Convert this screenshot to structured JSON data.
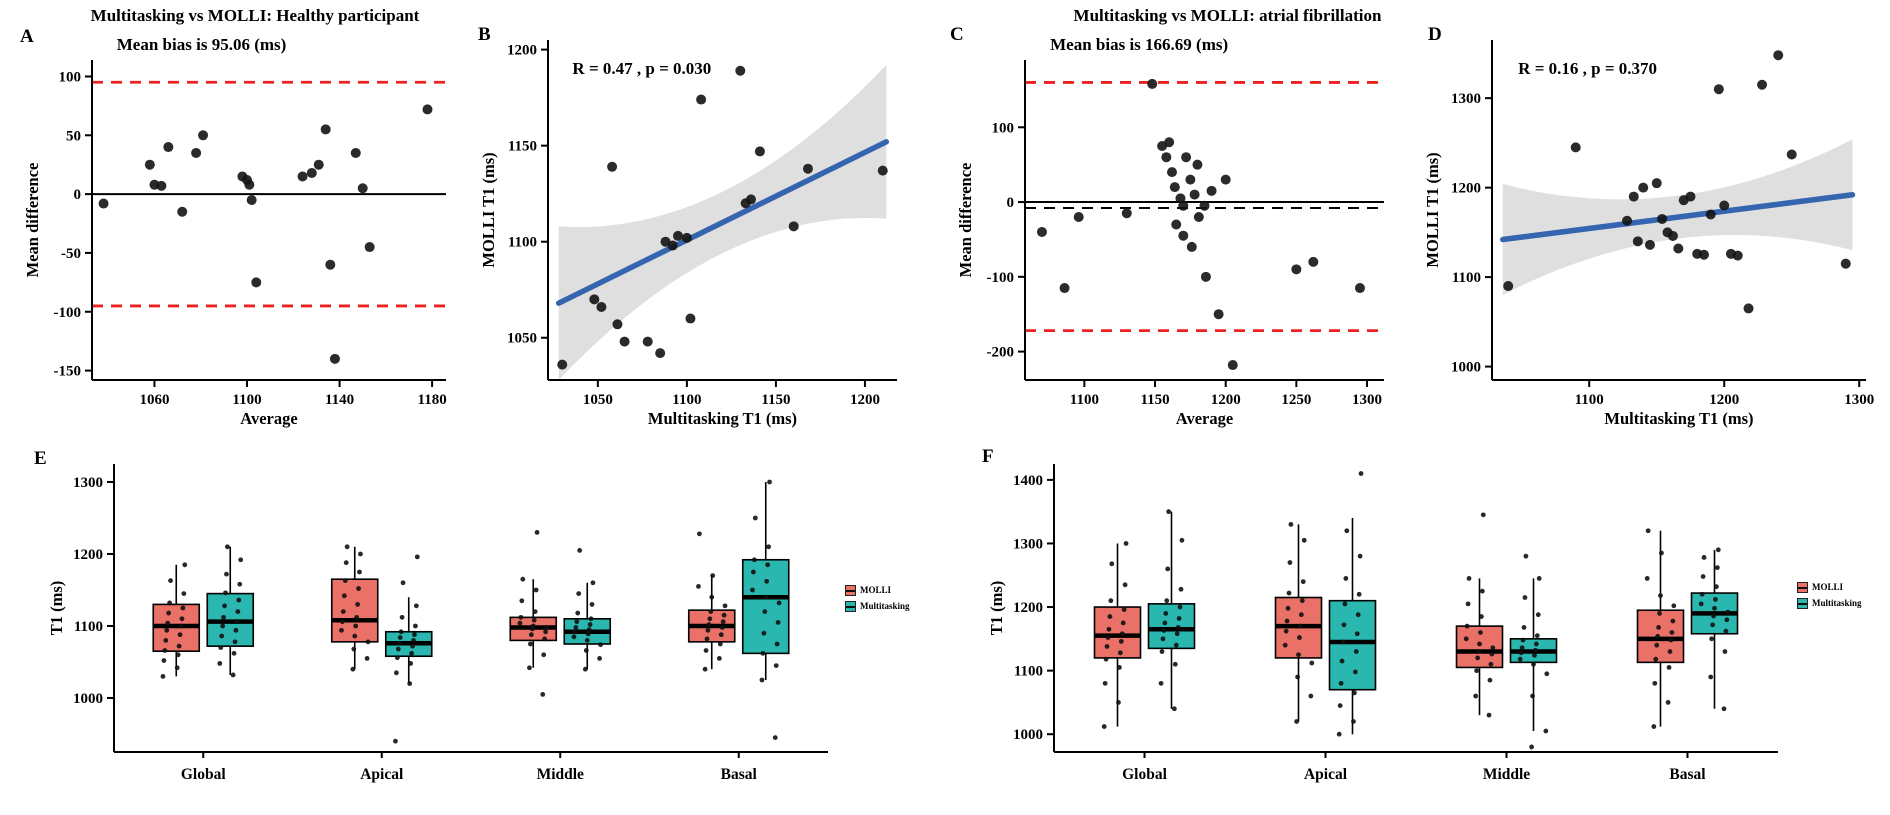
{
  "titles": {
    "left": "Multitasking vs MOLLI: Healthy participant",
    "right": "Multitasking vs MOLLI: atrial fibrillation"
  },
  "panels": {
    "a": "A",
    "b": "B",
    "c": "C",
    "d": "D",
    "e": "E",
    "f": "F"
  },
  "legend": {
    "items": [
      "MOLLI",
      "Multitasking"
    ],
    "colors": {
      "molli": "#E97168",
      "multitasking": "#2AB7B0"
    }
  },
  "colors": {
    "limit_line_red": "#EE2020",
    "regression_blue": "#3565AF",
    "confidence_band": "#DCDCDC",
    "point_black": "#141414"
  },
  "chart_data": [
    {
      "panel": "A",
      "type": "scatter",
      "annotation": "Mean bias is 95.06 (ms)",
      "annotation_pos": "above",
      "xlabel": "Average",
      "ylabel": "Mean difference",
      "xlim": [
        1033,
        1186
      ],
      "ylim": [
        -158,
        114
      ],
      "xticks": [
        1060,
        1100,
        1140,
        1180
      ],
      "yticks": [
        -150,
        -100,
        -50,
        0,
        50,
        100
      ],
      "hlines": [
        {
          "y": 95.06,
          "style": "dashed",
          "color": "#EE2020",
          "width": 2.8
        },
        {
          "y": 0,
          "style": "solid",
          "color": "#000000",
          "width": 2
        },
        {
          "y": -95.06,
          "style": "dashed",
          "color": "#EE2020",
          "width": 2.8
        }
      ],
      "points": [
        [
          1038,
          -8
        ],
        [
          1058,
          25
        ],
        [
          1060,
          8
        ],
        [
          1063,
          7
        ],
        [
          1066,
          40
        ],
        [
          1072,
          -15
        ],
        [
          1078,
          35
        ],
        [
          1081,
          50
        ],
        [
          1098,
          15
        ],
        [
          1100,
          12
        ],
        [
          1101,
          8
        ],
        [
          1102,
          -5
        ],
        [
          1104,
          -75
        ],
        [
          1124,
          15
        ],
        [
          1128,
          18
        ],
        [
          1131,
          25
        ],
        [
          1134,
          55
        ],
        [
          1136,
          -60
        ],
        [
          1138,
          -140
        ],
        [
          1147,
          35
        ],
        [
          1150,
          5
        ],
        [
          1153,
          -45
        ],
        [
          1178,
          72
        ]
      ]
    },
    {
      "panel": "B",
      "type": "scatter",
      "annotation": "R = 0.47 , p = 0.030",
      "annotation_pos": "inside",
      "xlabel": "Multitasking T1 (ms)",
      "ylabel": "MOLLI T1 (ms)",
      "xlim": [
        1022,
        1218
      ],
      "ylim": [
        1028,
        1205
      ],
      "xticks": [
        1050,
        1100,
        1150,
        1200
      ],
      "yticks": [
        1050,
        1100,
        1150,
        1200
      ],
      "regression": {
        "x1": 1028,
        "y1": 1068,
        "x2": 1212,
        "y2": 1152,
        "band_mid": 16,
        "band_end": 40
      },
      "points": [
        [
          1030,
          1036
        ],
        [
          1048,
          1070
        ],
        [
          1052,
          1066
        ],
        [
          1058,
          1139
        ],
        [
          1061,
          1057
        ],
        [
          1065,
          1048
        ],
        [
          1078,
          1048
        ],
        [
          1085,
          1042
        ],
        [
          1088,
          1100
        ],
        [
          1092,
          1098
        ],
        [
          1095,
          1103
        ],
        [
          1100,
          1102
        ],
        [
          1102,
          1060
        ],
        [
          1108,
          1174
        ],
        [
          1130,
          1189
        ],
        [
          1133,
          1120
        ],
        [
          1136,
          1122
        ],
        [
          1141,
          1147
        ],
        [
          1160,
          1108
        ],
        [
          1168,
          1138
        ],
        [
          1210,
          1137
        ]
      ]
    },
    {
      "panel": "C",
      "type": "scatter",
      "annotation": "Mean bias is 166.69 (ms)",
      "annotation_pos": "above",
      "xlabel": "Average",
      "ylabel": "Mean difference",
      "xlim": [
        1058,
        1312
      ],
      "ylim": [
        -238,
        190
      ],
      "xticks": [
        1100,
        1150,
        1200,
        1250,
        1300
      ],
      "yticks": [
        -200,
        -100,
        0,
        100
      ],
      "hlines": [
        {
          "y": 160,
          "style": "dashed",
          "color": "#EE2020",
          "width": 2.8
        },
        {
          "y": 0,
          "style": "solid",
          "color": "#000000",
          "width": 2
        },
        {
          "y": -8,
          "style": "dashed",
          "color": "#000000",
          "width": 2
        },
        {
          "y": -172,
          "style": "dashed",
          "color": "#EE2020",
          "width": 2.8
        }
      ],
      "points": [
        [
          1070,
          -40
        ],
        [
          1086,
          -115
        ],
        [
          1096,
          -20
        ],
        [
          1130,
          -15
        ],
        [
          1148,
          158
        ],
        [
          1155,
          75
        ],
        [
          1158,
          60
        ],
        [
          1160,
          80
        ],
        [
          1162,
          40
        ],
        [
          1164,
          20
        ],
        [
          1165,
          -30
        ],
        [
          1168,
          5
        ],
        [
          1170,
          -5
        ],
        [
          1170,
          -45
        ],
        [
          1172,
          60
        ],
        [
          1175,
          30
        ],
        [
          1176,
          -60
        ],
        [
          1178,
          10
        ],
        [
          1180,
          50
        ],
        [
          1181,
          -20
        ],
        [
          1185,
          -5
        ],
        [
          1186,
          -100
        ],
        [
          1190,
          15
        ],
        [
          1195,
          -150
        ],
        [
          1200,
          30
        ],
        [
          1205,
          -218
        ],
        [
          1250,
          -90
        ],
        [
          1262,
          -80
        ],
        [
          1295,
          -115
        ]
      ]
    },
    {
      "panel": "D",
      "type": "scatter",
      "annotation": "R = 0.16 , p = 0.370",
      "annotation_pos": "inside",
      "xlabel": "Multitasking T1 (ms)",
      "ylabel": "MOLLI T1 (ms)",
      "xlim": [
        1028,
        1305
      ],
      "ylim": [
        985,
        1365
      ],
      "xticks": [
        1100,
        1200,
        1300
      ],
      "yticks": [
        1000,
        1100,
        1200,
        1300
      ],
      "regression": {
        "x1": 1036,
        "y1": 1142,
        "x2": 1295,
        "y2": 1192,
        "band_mid": 24,
        "band_end": 62
      },
      "points": [
        [
          1040,
          1090
        ],
        [
          1090,
          1245
        ],
        [
          1128,
          1163
        ],
        [
          1133,
          1190
        ],
        [
          1136,
          1140
        ],
        [
          1140,
          1200
        ],
        [
          1145,
          1136
        ],
        [
          1150,
          1205
        ],
        [
          1154,
          1165
        ],
        [
          1158,
          1150
        ],
        [
          1162,
          1146
        ],
        [
          1166,
          1132
        ],
        [
          1170,
          1186
        ],
        [
          1175,
          1190
        ],
        [
          1180,
          1126
        ],
        [
          1185,
          1125
        ],
        [
          1190,
          1170
        ],
        [
          1196,
          1310
        ],
        [
          1200,
          1180
        ],
        [
          1205,
          1126
        ],
        [
          1210,
          1124
        ],
        [
          1218,
          1065
        ],
        [
          1228,
          1315
        ],
        [
          1240,
          1348
        ],
        [
          1250,
          1237
        ],
        [
          1290,
          1115
        ]
      ]
    },
    {
      "panel": "E",
      "type": "box",
      "ylabel": "T1 (ms)",
      "ylim": [
        925,
        1325
      ],
      "yticks": [
        1000,
        1100,
        1200,
        1300
      ],
      "categories": [
        "Global",
        "Apical",
        "Middle",
        "Basal"
      ],
      "series": [
        {
          "name": "MOLLI",
          "color": "#E97168",
          "boxes": [
            {
              "low": 1030,
              "q1": 1065,
              "med": 1100,
              "q3": 1130,
              "high": 1185,
              "points": [
                1030,
                1042,
                1052,
                1060,
                1066,
                1072,
                1080,
                1088,
                1094,
                1100,
                1104,
                1110,
                1118,
                1125,
                1132,
                1145,
                1163,
                1185
              ]
            },
            {
              "low": 1040,
              "q1": 1078,
              "med": 1108,
              "q3": 1165,
              "high": 1210,
              "points": [
                1040,
                1055,
                1068,
                1078,
                1086,
                1094,
                1100,
                1106,
                1112,
                1120,
                1130,
                1142,
                1152,
                1163,
                1175,
                1188,
                1200,
                1210
              ]
            },
            {
              "low": 1042,
              "q1": 1080,
              "med": 1098,
              "q3": 1112,
              "high": 1165,
              "points": [
                1005,
                1042,
                1060,
                1075,
                1082,
                1088,
                1092,
                1096,
                1098,
                1100,
                1104,
                1108,
                1112,
                1120,
                1135,
                1150,
                1165,
                1230
              ]
            },
            {
              "low": 1040,
              "q1": 1078,
              "med": 1100,
              "q3": 1122,
              "high": 1170,
              "points": [
                1040,
                1055,
                1066,
                1075,
                1082,
                1088,
                1094,
                1098,
                1102,
                1106,
                1110,
                1115,
                1120,
                1128,
                1140,
                1155,
                1170,
                1228
              ]
            }
          ]
        },
        {
          "name": "Multitasking",
          "color": "#2AB7B0",
          "boxes": [
            {
              "low": 1032,
              "q1": 1072,
              "med": 1106,
              "q3": 1145,
              "high": 1210,
              "points": [
                1032,
                1048,
                1062,
                1070,
                1078,
                1086,
                1094,
                1100,
                1106,
                1112,
                1120,
                1128,
                1136,
                1146,
                1158,
                1172,
                1192,
                1210
              ]
            },
            {
              "low": 1020,
              "q1": 1058,
              "med": 1076,
              "q3": 1092,
              "high": 1140,
              "points": [
                940,
                1020,
                1035,
                1048,
                1056,
                1062,
                1068,
                1072,
                1076,
                1080,
                1084,
                1088,
                1092,
                1100,
                1112,
                1128,
                1160,
                1196
              ]
            },
            {
              "low": 1040,
              "q1": 1075,
              "med": 1092,
              "q3": 1110,
              "high": 1160,
              "points": [
                1040,
                1055,
                1066,
                1074,
                1080,
                1085,
                1089,
                1092,
                1095,
                1098,
                1102,
                1106,
                1110,
                1118,
                1130,
                1145,
                1160,
                1205
              ]
            },
            {
              "low": 1025,
              "q1": 1062,
              "med": 1140,
              "q3": 1192,
              "high": 1300,
              "points": [
                945,
                1025,
                1045,
                1062,
                1075,
                1090,
                1105,
                1120,
                1132,
                1140,
                1150,
                1162,
                1175,
                1185,
                1192,
                1210,
                1250,
                1300
              ]
            }
          ]
        }
      ]
    },
    {
      "panel": "F",
      "type": "box",
      "ylabel": "T1 (ms)",
      "ylim": [
        972,
        1425
      ],
      "yticks": [
        1000,
        1100,
        1200,
        1300,
        1400
      ],
      "categories": [
        "Global",
        "Apical",
        "Middle",
        "Basal"
      ],
      "series": [
        {
          "name": "MOLLI",
          "color": "#E97168",
          "boxes": [
            {
              "low": 1012,
              "q1": 1120,
              "med": 1155,
              "q3": 1200,
              "high": 1300,
              "points": [
                1012,
                1050,
                1080,
                1105,
                1118,
                1128,
                1138,
                1146,
                1152,
                1158,
                1165,
                1175,
                1185,
                1196,
                1210,
                1235,
                1268,
                1300
              ]
            },
            {
              "low": 1020,
              "q1": 1120,
              "med": 1170,
              "q3": 1215,
              "high": 1330,
              "points": [
                1020,
                1060,
                1090,
                1112,
                1125,
                1140,
                1152,
                1162,
                1170,
                1178,
                1188,
                1198,
                1210,
                1222,
                1240,
                1270,
                1305,
                1330
              ]
            },
            {
              "low": 1030,
              "q1": 1105,
              "med": 1130,
              "q3": 1170,
              "high": 1245,
              "points": [
                1030,
                1060,
                1085,
                1100,
                1110,
                1120,
                1126,
                1130,
                1136,
                1142,
                1150,
                1160,
                1170,
                1185,
                1205,
                1225,
                1245,
                1345
              ]
            },
            {
              "low": 1012,
              "q1": 1113,
              "med": 1150,
              "q3": 1195,
              "high": 1320,
              "points": [
                1012,
                1050,
                1080,
                1105,
                1118,
                1130,
                1140,
                1148,
                1154,
                1160,
                1168,
                1178,
                1190,
                1202,
                1218,
                1245,
                1285,
                1320
              ]
            }
          ]
        },
        {
          "name": "Multitasking",
          "color": "#2AB7B0",
          "boxes": [
            {
              "low": 1040,
              "q1": 1135,
              "med": 1165,
              "q3": 1205,
              "high": 1350,
              "points": [
                1040,
                1080,
                1110,
                1130,
                1140,
                1150,
                1158,
                1163,
                1168,
                1175,
                1182,
                1190,
                1200,
                1210,
                1228,
                1260,
                1305,
                1350
              ]
            },
            {
              "low": 1000,
              "q1": 1070,
              "med": 1145,
              "q3": 1210,
              "high": 1340,
              "points": [
                1000,
                1020,
                1045,
                1065,
                1080,
                1098,
                1115,
                1130,
                1145,
                1158,
                1172,
                1188,
                1205,
                1220,
                1245,
                1280,
                1320,
                1410
              ]
            },
            {
              "low": 1005,
              "q1": 1113,
              "med": 1130,
              "q3": 1150,
              "high": 1245,
              "points": [
                980,
                1005,
                1060,
                1095,
                1110,
                1118,
                1124,
                1128,
                1132,
                1136,
                1142,
                1148,
                1155,
                1168,
                1188,
                1215,
                1245,
                1280
              ]
            },
            {
              "low": 1040,
              "q1": 1158,
              "med": 1190,
              "q3": 1222,
              "high": 1290,
              "points": [
                1040,
                1090,
                1130,
                1150,
                1162,
                1172,
                1180,
                1186,
                1192,
                1198,
                1205,
                1212,
                1220,
                1232,
                1248,
                1262,
                1278,
                1290
              ]
            }
          ]
        }
      ]
    }
  ]
}
